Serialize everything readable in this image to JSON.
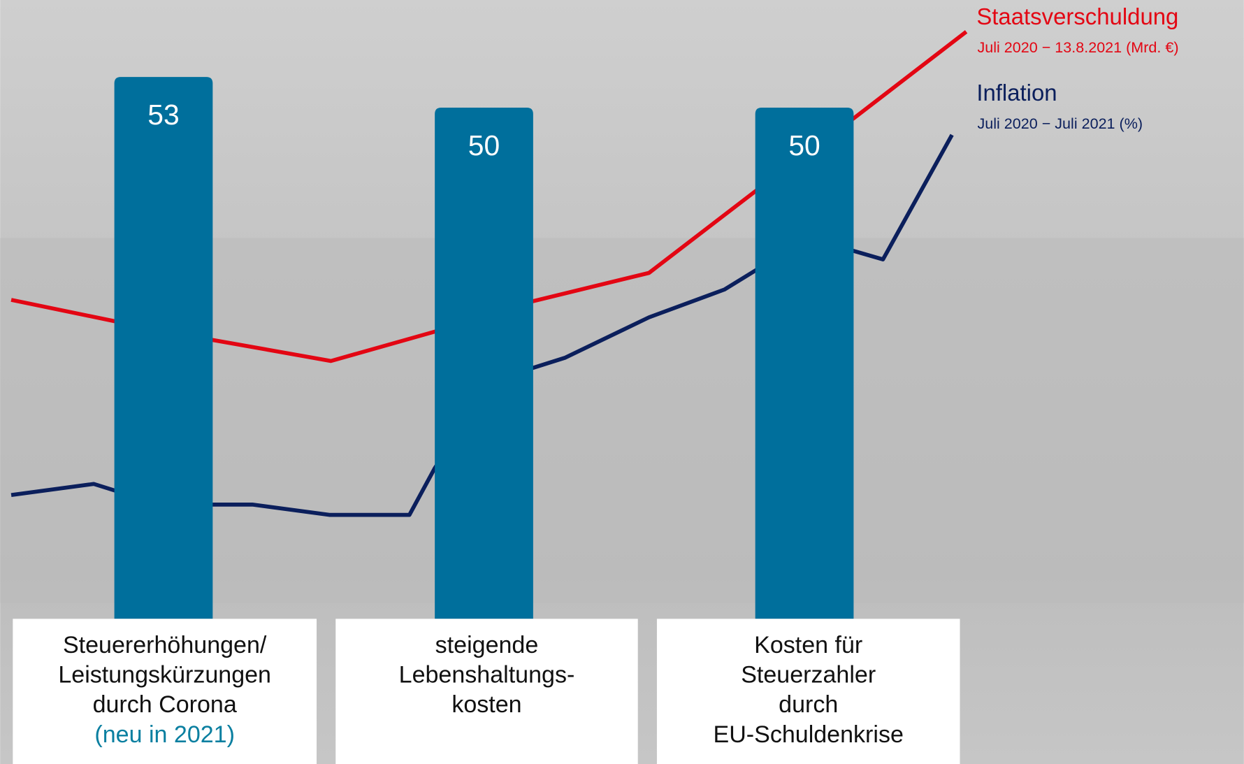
{
  "chart_data": {
    "type": "bar",
    "categories": [
      [
        "Steuererhöhungen/",
        "Leistungskürzungen",
        "durch Corona"
      ],
      [
        "steigende",
        "Lebenshaltungs-",
        "kosten"
      ],
      [
        "Kosten für",
        "Steuerzahler",
        "durch",
        "EU-Schuldenkrise"
      ]
    ],
    "category_notes": [
      "(neu in 2021)",
      null,
      null
    ],
    "note_color": "#0a7fa0",
    "values": [
      53,
      50,
      50
    ],
    "color": "#006f9c",
    "legend": [
      {
        "name": "Staatsverschuldung",
        "subtitle": "Juli 2020 − 13.8.2021 (Mrd. €)",
        "color": "#e30613"
      },
      {
        "name": "Inflation",
        "subtitle": "Juli 2020 − Juli 2021 (%)",
        "color": "#0b1f5c"
      }
    ]
  }
}
